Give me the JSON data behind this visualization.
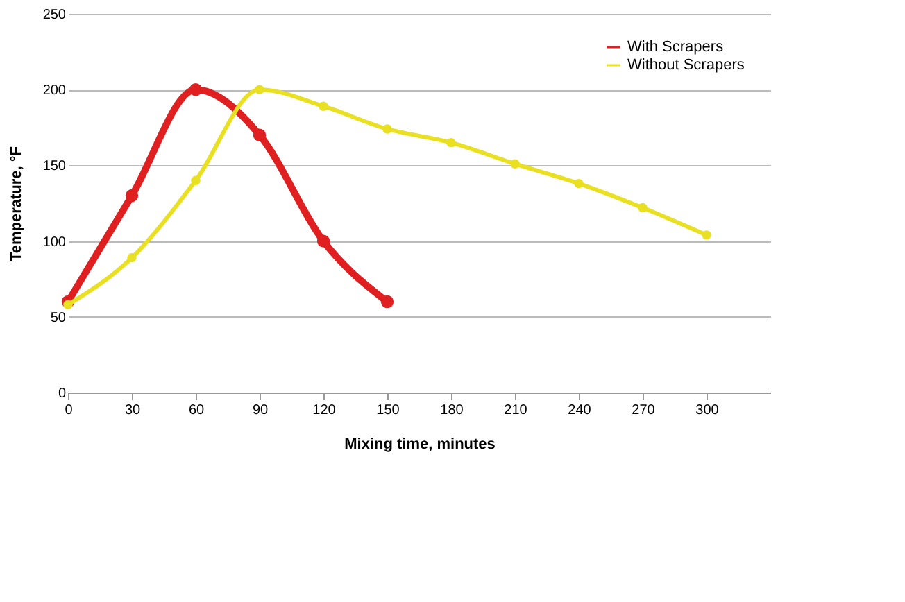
{
  "chart_data": {
    "type": "line",
    "xlabel": "Mixing time, minutes",
    "ylabel": "Temperature, °F",
    "xlim": [
      0,
      330
    ],
    "xticks": [
      0,
      30,
      60,
      90,
      120,
      150,
      180,
      210,
      240,
      270,
      300
    ],
    "ylim": [
      0,
      250
    ],
    "yticks": [
      0,
      50,
      100,
      150,
      200,
      250
    ],
    "grid": "y",
    "legend": "top right",
    "marker": "circle",
    "line_style": "solid",
    "series": [
      {
        "name": "With Scrapers",
        "color": "#e02020",
        "x": [
          0,
          30,
          60,
          90,
          120,
          150
        ],
        "values": [
          60,
          130,
          200,
          170,
          100,
          60
        ]
      },
      {
        "name": "Without Scrapers",
        "color": "#e8e020",
        "x": [
          0,
          30,
          60,
          90,
          120,
          150,
          180,
          210,
          240,
          270,
          300
        ],
        "values": [
          58,
          89,
          140,
          200,
          189,
          174,
          165,
          151,
          138,
          122,
          104
        ]
      }
    ]
  }
}
